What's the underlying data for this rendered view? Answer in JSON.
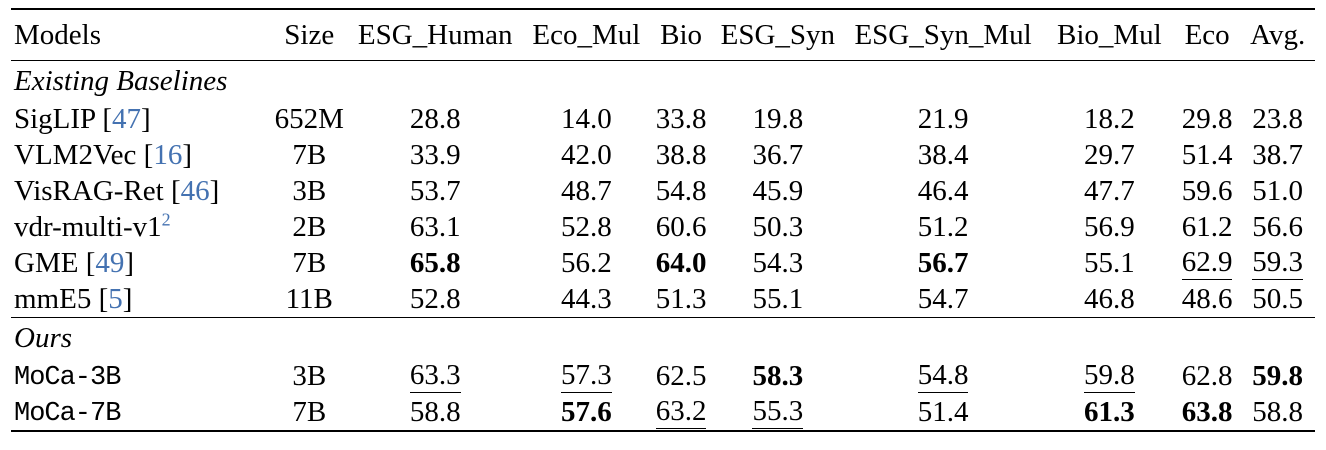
{
  "table": {
    "link_color": "#4472b1",
    "columns": [
      {
        "label": "Models"
      },
      {
        "label": "Size"
      },
      {
        "label": "ESG_Human"
      },
      {
        "label": "Eco_Mul"
      },
      {
        "label": "Bio"
      },
      {
        "label": "ESG_Syn"
      },
      {
        "label": "ESG_Syn_Mul"
      },
      {
        "label": "Bio_Mul"
      },
      {
        "label": "Eco"
      },
      {
        "label": "Avg."
      }
    ],
    "sections": [
      {
        "label": "Existing Baselines",
        "rows": [
          {
            "model": "SigLIP",
            "cite": "47",
            "size": "652M",
            "values": [
              "28.8",
              "14.0",
              "33.8",
              "19.8",
              "21.9",
              "18.2",
              "29.8",
              "23.8"
            ],
            "styles": [
              "",
              "",
              "",
              "",
              "",
              "",
              "",
              ""
            ]
          },
          {
            "model": "VLM2Vec",
            "cite": "16",
            "size": "7B",
            "values": [
              "33.9",
              "42.0",
              "38.8",
              "36.7",
              "38.4",
              "29.7",
              "51.4",
              "38.7"
            ],
            "styles": [
              "",
              "",
              "",
              "",
              "",
              "",
              "",
              ""
            ]
          },
          {
            "model": "VisRAG-Ret",
            "cite": "46",
            "size": "3B",
            "values": [
              "53.7",
              "48.7",
              "54.8",
              "45.9",
              "46.4",
              "47.7",
              "59.6",
              "51.0"
            ],
            "styles": [
              "",
              "",
              "",
              "",
              "",
              "",
              "",
              ""
            ]
          },
          {
            "model": "vdr-multi-v1",
            "sup": "2",
            "size": "2B",
            "values": [
              "63.1",
              "52.8",
              "60.6",
              "50.3",
              "51.2",
              "56.9",
              "61.2",
              "56.6"
            ],
            "styles": [
              "",
              "",
              "",
              "",
              "",
              "",
              "",
              ""
            ]
          },
          {
            "model": "GME",
            "cite": "49",
            "size": "7B",
            "values": [
              "65.8",
              "56.2",
              "64.0",
              "54.3",
              "56.7",
              "55.1",
              "62.9",
              "59.3"
            ],
            "styles": [
              "b",
              "",
              "b",
              "",
              "b",
              "",
              "u",
              "u"
            ]
          },
          {
            "model": "mmE5",
            "cite": "5",
            "size": "11B",
            "values": [
              "52.8",
              "44.3",
              "51.3",
              "55.1",
              "54.7",
              "46.8",
              "48.6",
              "50.5"
            ],
            "styles": [
              "",
              "",
              "",
              "",
              "",
              "",
              "",
              ""
            ]
          }
        ]
      },
      {
        "label": "Ours",
        "rows": [
          {
            "model": "MoCa-3B",
            "mono": true,
            "size": "3B",
            "values": [
              "63.3",
              "57.3",
              "62.5",
              "58.3",
              "54.8",
              "59.8",
              "62.8",
              "59.8"
            ],
            "styles": [
              "u",
              "u",
              "",
              "b",
              "u",
              "u",
              "",
              "b"
            ]
          },
          {
            "model": "MoCa-7B",
            "mono": true,
            "size": "7B",
            "values": [
              "58.8",
              "57.6",
              "63.2",
              "55.3",
              "51.4",
              "61.3",
              "63.8",
              "58.8"
            ],
            "styles": [
              "",
              "b",
              "u",
              "u",
              "",
              "b",
              "b",
              ""
            ]
          }
        ]
      }
    ]
  }
}
